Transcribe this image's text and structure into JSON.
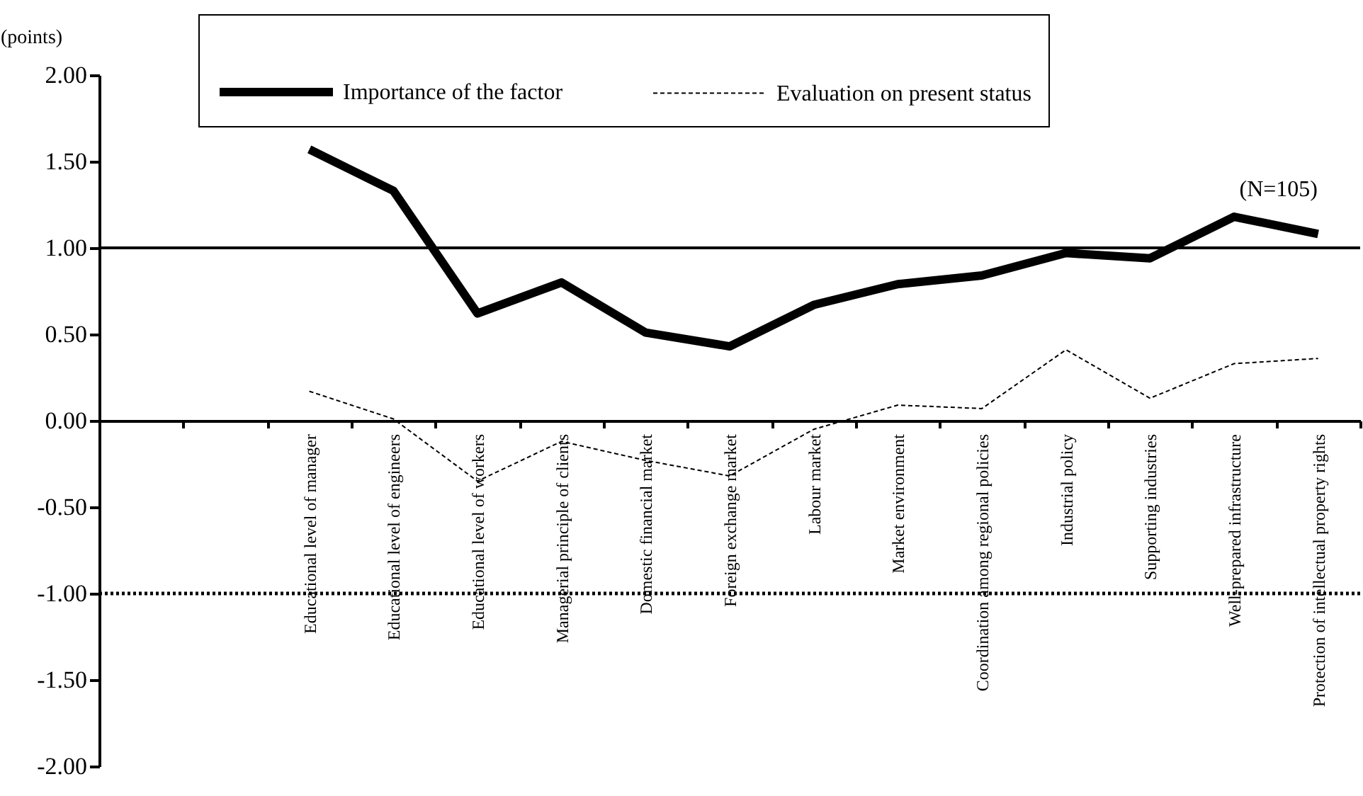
{
  "chart_data": {
    "type": "line",
    "ylabel": "(points)",
    "categories": [
      null,
      null,
      "Educational level of manager",
      "Educational level of engineers",
      "Educational level of workers",
      "Managerial principle of clients",
      "Domestic financial market",
      "Foreign exchange market",
      "Labour market",
      "Market environment",
      "Coordination among regional policies",
      "Industrial policy",
      "Supporting industries",
      "Well-prepared infrastructure",
      "Protection of intellectual property rights"
    ],
    "series": [
      {
        "name": "Importance of the factor",
        "color": "#000000",
        "line_style": "solid",
        "values": [
          null,
          null,
          1.57,
          1.33,
          0.62,
          0.8,
          0.51,
          0.43,
          0.67,
          0.79,
          0.84,
          0.97,
          0.94,
          1.18,
          1.08
        ]
      },
      {
        "name": "Evaluation on present status",
        "color": "#000000",
        "line_style": "dashed",
        "values": [
          null,
          null,
          0.17,
          0.01,
          -0.35,
          -0.12,
          -0.23,
          -0.32,
          -0.05,
          0.09,
          0.07,
          0.41,
          0.13,
          0.33,
          0.36
        ]
      }
    ],
    "ylim": [
      -2,
      2
    ],
    "yticks": [
      {
        "value": -2,
        "label": "-2.00"
      },
      {
        "value": -1.5,
        "label": "-1.50"
      },
      {
        "value": -1,
        "label": "-1.00"
      },
      {
        "value": -0.5,
        "label": "-0.50"
      },
      {
        "value": 0,
        "label": "0.00"
      },
      {
        "value": 0.5,
        "label": "0.50"
      },
      {
        "value": 1,
        "label": "1.00"
      },
      {
        "value": 1.5,
        "label": "1.50"
      },
      {
        "value": 2,
        "label": "2.00"
      }
    ],
    "ref_lines": [
      {
        "axis": "y",
        "value": 1,
        "color": "#000000",
        "line_style": "solid"
      },
      {
        "axis": "y",
        "value": -1,
        "color": "#000000",
        "line_style": "dotted"
      }
    ],
    "annotations": [
      "(N=105)"
    ],
    "legend": "top",
    "marker": "none"
  }
}
